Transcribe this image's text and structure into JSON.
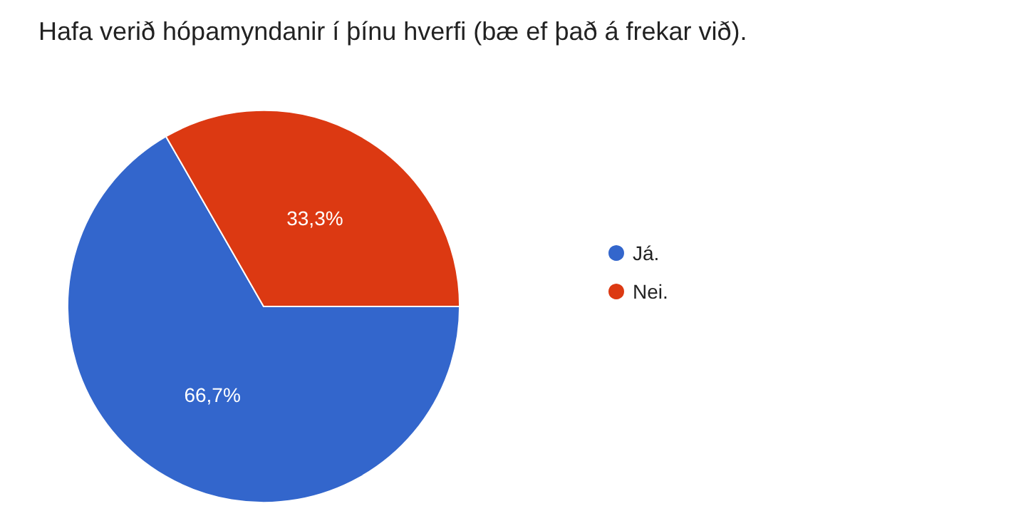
{
  "chart_data": {
    "type": "pie",
    "title": "Hafa verið hópamyndanir í þínu hverfi (bæ ef það á frekar við).",
    "categories": [
      "Já.",
      "Nei."
    ],
    "values": [
      66.7,
      33.3
    ],
    "value_labels": [
      "66,7%",
      "33,3%"
    ],
    "colors": [
      "#3366cc",
      "#dc3912"
    ],
    "legend": "right"
  }
}
